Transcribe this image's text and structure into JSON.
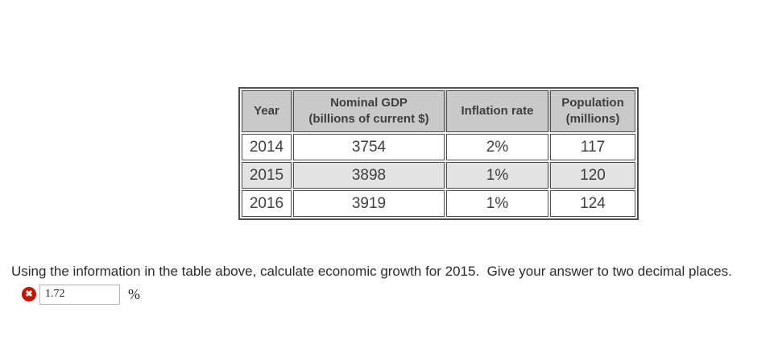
{
  "table": {
    "headers": [
      "Year",
      "Nominal GDP\n(billions of current $)",
      "Inflation rate",
      "Population\n(millions)"
    ],
    "rows": [
      {
        "cells": [
          "2014",
          "3754",
          "2%",
          "117"
        ]
      },
      {
        "cells": [
          "2015",
          "3898",
          "1%",
          "120"
        ]
      },
      {
        "cells": [
          "2016",
          "3919",
          "1%",
          "124"
        ]
      }
    ]
  },
  "question": {
    "text": "Using the information in the table above, calculate economic growth for 2015.  Give your answer to two decimal places."
  },
  "answer": {
    "value": "1.72",
    "unit": "%",
    "status": "incorrect",
    "status_icon": "incorrect-x-icon",
    "status_glyph": "✖"
  },
  "colors": {
    "header_bg": "#c9c9c9",
    "alt_row_bg": "#e3e3e3",
    "table_border": "#4f4f4f",
    "incorrect_red": "#cc1100"
  }
}
